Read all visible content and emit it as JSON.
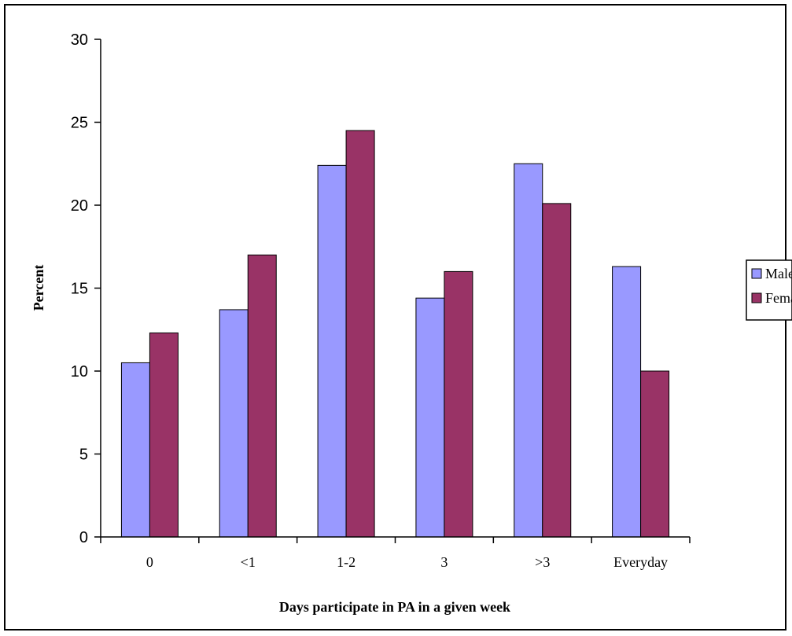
{
  "chart_data": {
    "type": "bar",
    "title": "",
    "xlabel": "Days participate in PA in a given week",
    "ylabel": "Percent",
    "ylim": [
      0,
      30
    ],
    "yticks": [
      0,
      5,
      10,
      15,
      20,
      25,
      30
    ],
    "categories": [
      "0",
      "<1",
      "1-2",
      "3",
      ">3",
      "Everyday"
    ],
    "series": [
      {
        "name": "Male",
        "color": "#9999ff",
        "values": [
          10.5,
          13.7,
          22.4,
          14.4,
          22.5,
          16.3
        ]
      },
      {
        "name": "Female",
        "color": "#993366",
        "values": [
          12.3,
          17.0,
          24.5,
          16.0,
          20.1,
          10.0
        ]
      }
    ],
    "grid": false,
    "legend": "right"
  }
}
